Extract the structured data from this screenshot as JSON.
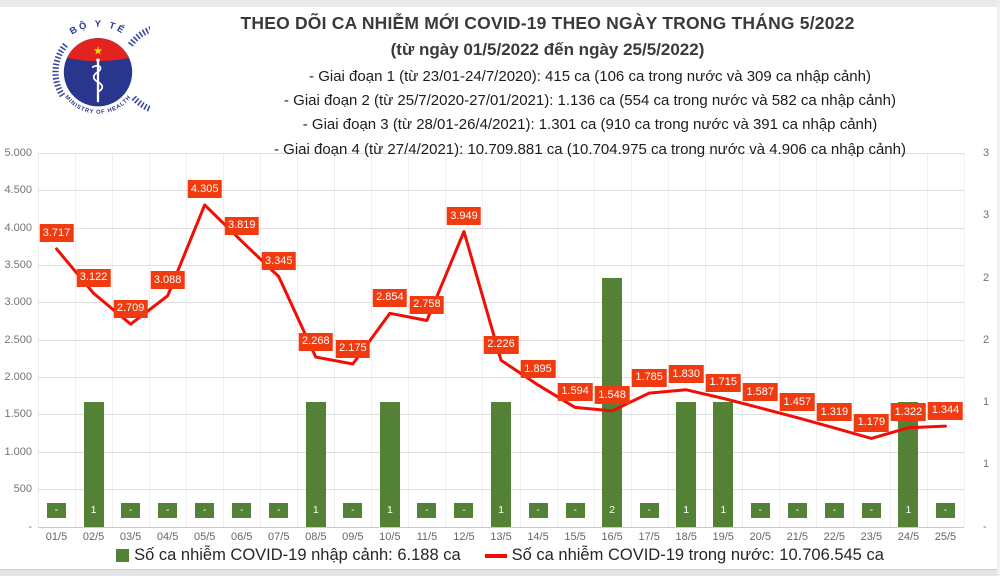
{
  "logo": {
    "top_text": "BỘ Y TẾ",
    "bottom_text": "MINISTRY OF HEALTH",
    "navy": "#28368e",
    "red": "#e2231e",
    "star": "#ffd100"
  },
  "header": {
    "title": "THEO DÕI CA NHIỄM MỚI COVID-19 THEO NGÀY TRONG THÁNG 5/2022",
    "subtitle": "(từ ngày 01/5/2022 đến ngày 25/5/2022)",
    "phases": [
      "- Giai đoạn 1 (từ 23/01-24/7/2020): 415 ca (106 ca trong nước và 309 ca nhập cảnh)",
      "- Giai đoạn 2 (từ 25/7/2020-27/01/2021): 1.136 ca (554 ca trong nước và 582 ca nhập cảnh)",
      "- Giai đoạn 3 (từ 28/01-26/4/2021): 1.301 ca (910 ca trong nước và 391 ca nhập cảnh)",
      "- Giai đoạn 4 (từ 27/4/2021): 10.709.881 ca (10.704.975 ca trong nước và 4.906 ca nhập cảnh)"
    ]
  },
  "chart_data": {
    "type": "combo",
    "categories": [
      "01/5",
      "02/5",
      "03/5",
      "04/5",
      "05/5",
      "06/5",
      "07/5",
      "08/5",
      "09/5",
      "10/5",
      "11/5",
      "12/5",
      "13/5",
      "14/5",
      "15/5",
      "16/5",
      "17/5",
      "18/5",
      "19/5",
      "20/5",
      "21/5",
      "22/5",
      "23/5",
      "24/5",
      "25/5"
    ],
    "series": [
      {
        "name": "Số ca nhiễm COVID-19 nhập cảnh",
        "type": "bar",
        "axis": "right",
        "color": "#538135",
        "values": [
          0,
          1,
          0,
          0,
          0,
          0,
          0,
          1,
          0,
          1,
          0,
          0,
          1,
          0,
          0,
          2,
          0,
          1,
          1,
          0,
          0,
          0,
          0,
          1,
          0
        ],
        "labels": [
          "-",
          "1",
          "-",
          "-",
          "-",
          "-",
          "-",
          "1",
          "-",
          "1",
          "-",
          "-",
          "1",
          "-",
          "-",
          "2",
          "-",
          "1",
          "1",
          "-",
          "-",
          "-",
          "-",
          "1",
          "-"
        ]
      },
      {
        "name": "Số ca nhiễm COVID-19 trong nước",
        "type": "line",
        "axis": "left",
        "color": "#f20d05",
        "label_bg": "#f03b10",
        "values": [
          3717,
          3122,
          2709,
          3088,
          4305,
          3819,
          3345,
          2268,
          2175,
          2854,
          2758,
          3949,
          2226,
          1895,
          1594,
          1548,
          1785,
          1830,
          1715,
          1587,
          1457,
          1319,
          1179,
          1322,
          1344
        ],
        "labels": [
          "3.717",
          "3.122",
          "2.709",
          "3.088",
          "4.305",
          "3.819",
          "3.345",
          "2.268",
          "2.175",
          "2.854",
          "2.758",
          "3.949",
          "2.226",
          "1.895",
          "1.594",
          "1.548",
          "1.785",
          "1.830",
          "1.715",
          "1.587",
          "1.457",
          "1.319",
          "1.179",
          "1.322",
          "1.344"
        ]
      }
    ],
    "left_axis": {
      "min": 0,
      "max": 5000,
      "ticks": [
        {
          "label": "5.000",
          "value": 5000
        },
        {
          "label": "4.500",
          "value": 4500
        },
        {
          "label": "4.000",
          "value": 4000
        },
        {
          "label": "3.500",
          "value": 3500
        },
        {
          "label": "3.000",
          "value": 3000
        },
        {
          "label": "2.500",
          "value": 2500
        },
        {
          "label": "2.000",
          "value": 2000
        },
        {
          "label": "1.500",
          "value": 1500
        },
        {
          "label": "1.000",
          "value": 1000
        },
        {
          "label": "500",
          "value": 500
        },
        {
          "label": "-",
          "value": 0
        }
      ]
    },
    "right_axis": {
      "min": 0,
      "max": 3,
      "ticks": [
        {
          "label": "3",
          "value": 3
        },
        {
          "label": "3",
          "value": 2.5
        },
        {
          "label": "2",
          "value": 2
        },
        {
          "label": "2",
          "value": 1.5
        },
        {
          "label": "1",
          "value": 1
        },
        {
          "label": "1",
          "value": 0.5
        },
        {
          "label": "-",
          "value": 0
        }
      ]
    },
    "grid": true,
    "legend_position": "bottom"
  },
  "legend": {
    "items": [
      {
        "label": "Số ca nhiễm COVID-19 nhập cảnh: 6.188 ca",
        "swatch": "square",
        "color": "#538135"
      },
      {
        "label": "Số ca nhiễm COVID-19 trong nước: 10.706.545 ca",
        "swatch": "line",
        "color": "#f20d05"
      }
    ]
  }
}
